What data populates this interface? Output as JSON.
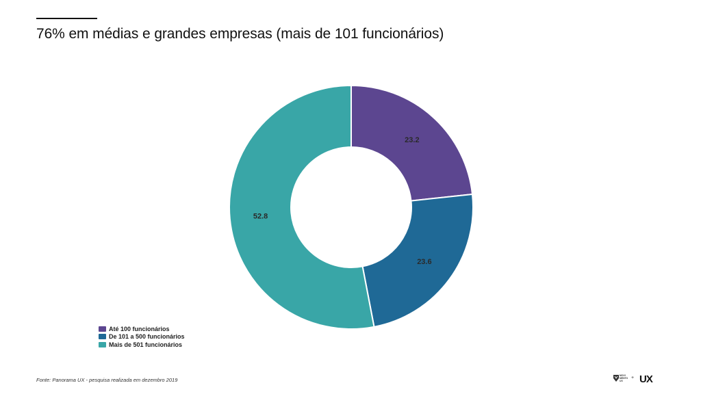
{
  "page": {
    "title": "76% em médias e grandes empresas (mais de 101 funcionários)",
    "source": "Fonte: Panorama UX - pesquisa realizada em dezembro 2019"
  },
  "chart_data": {
    "type": "pie",
    "variant": "donut",
    "categories": [
      "Até 100 funcionários",
      "De 101 a 500 funcionários",
      "Mais de 501 funcionários"
    ],
    "values": [
      23.2,
      23.6,
      52.8
    ],
    "data_labels": [
      "23.2",
      "23.6",
      "52.8"
    ],
    "colors": [
      "#5c4690",
      "#1f6996",
      "#39a6a7"
    ],
    "legend_position": "bottom-left",
    "start_angle_deg": 0,
    "direction": "clockwise"
  },
  "logo": {
    "left_text": [
      "MOVI",
      "MENTO",
      "UX"
    ],
    "plus": "+",
    "right_text": "UX"
  }
}
